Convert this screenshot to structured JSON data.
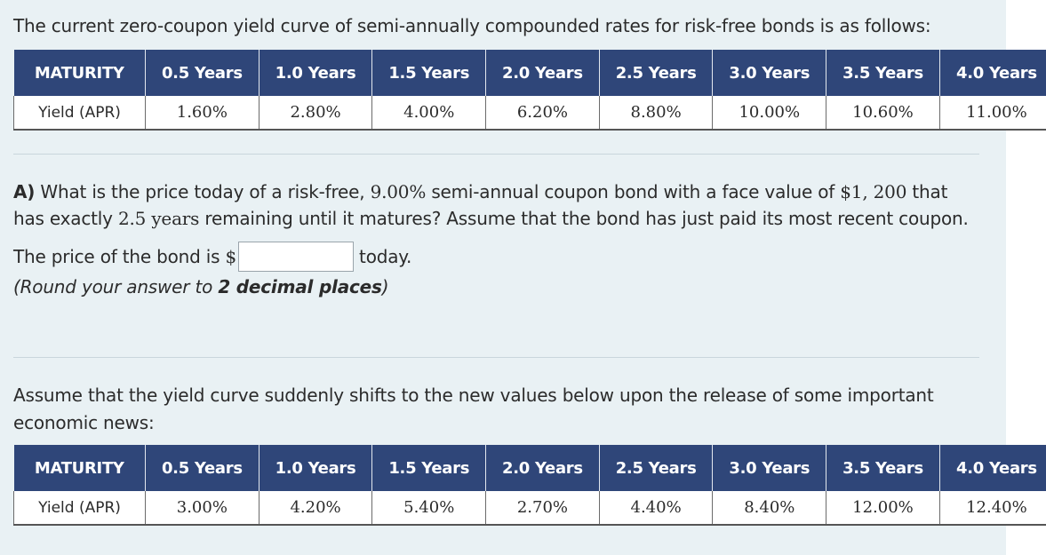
{
  "intro": "The current zero-coupon yield curve of semi-annually compounded rates for risk-free bonds is as follows:",
  "table1": {
    "header": [
      "MATURITY",
      "0.5 Years",
      "1.0 Years",
      "1.5 Years",
      "2.0 Years",
      "2.5 Years",
      "3.0 Years",
      "3.5 Years",
      "4.0 Years"
    ],
    "row_label": "Yield (APR)",
    "values": [
      "1.60%",
      "2.80%",
      "4.00%",
      "6.20%",
      "8.80%",
      "10.00%",
      "10.60%",
      "11.00%"
    ]
  },
  "question": {
    "label": "A)",
    "text_part1": "What is the price today of a risk-free,",
    "coupon_rate": "9.00%",
    "text_part2": "semi-annual coupon bond with a face value of",
    "face_value": "$1, 200",
    "text_part3": "that has exactly",
    "years_remaining": "2.5 years",
    "text_part4": "remaining until it matures? Assume that the bond has just paid its most recent coupon."
  },
  "answer": {
    "prefix": "The price of the bond is",
    "currency": "$",
    "input_value": "",
    "suffix": "today."
  },
  "rounding": {
    "prefix": "(Round your answer to ",
    "bold": "2 decimal places",
    "suffix": ")"
  },
  "assume_text": "Assume that the yield curve suddenly shifts to the new values below upon the release of some important economic news:",
  "table2": {
    "header": [
      "MATURITY",
      "0.5 Years",
      "1.0 Years",
      "1.5 Years",
      "2.0 Years",
      "2.5 Years",
      "3.0 Years",
      "3.5 Years",
      "4.0 Years"
    ],
    "row_label": "Yield (APR)",
    "values": [
      "3.00%",
      "4.20%",
      "5.40%",
      "2.70%",
      "4.40%",
      "8.40%",
      "12.00%",
      "12.40%"
    ]
  }
}
